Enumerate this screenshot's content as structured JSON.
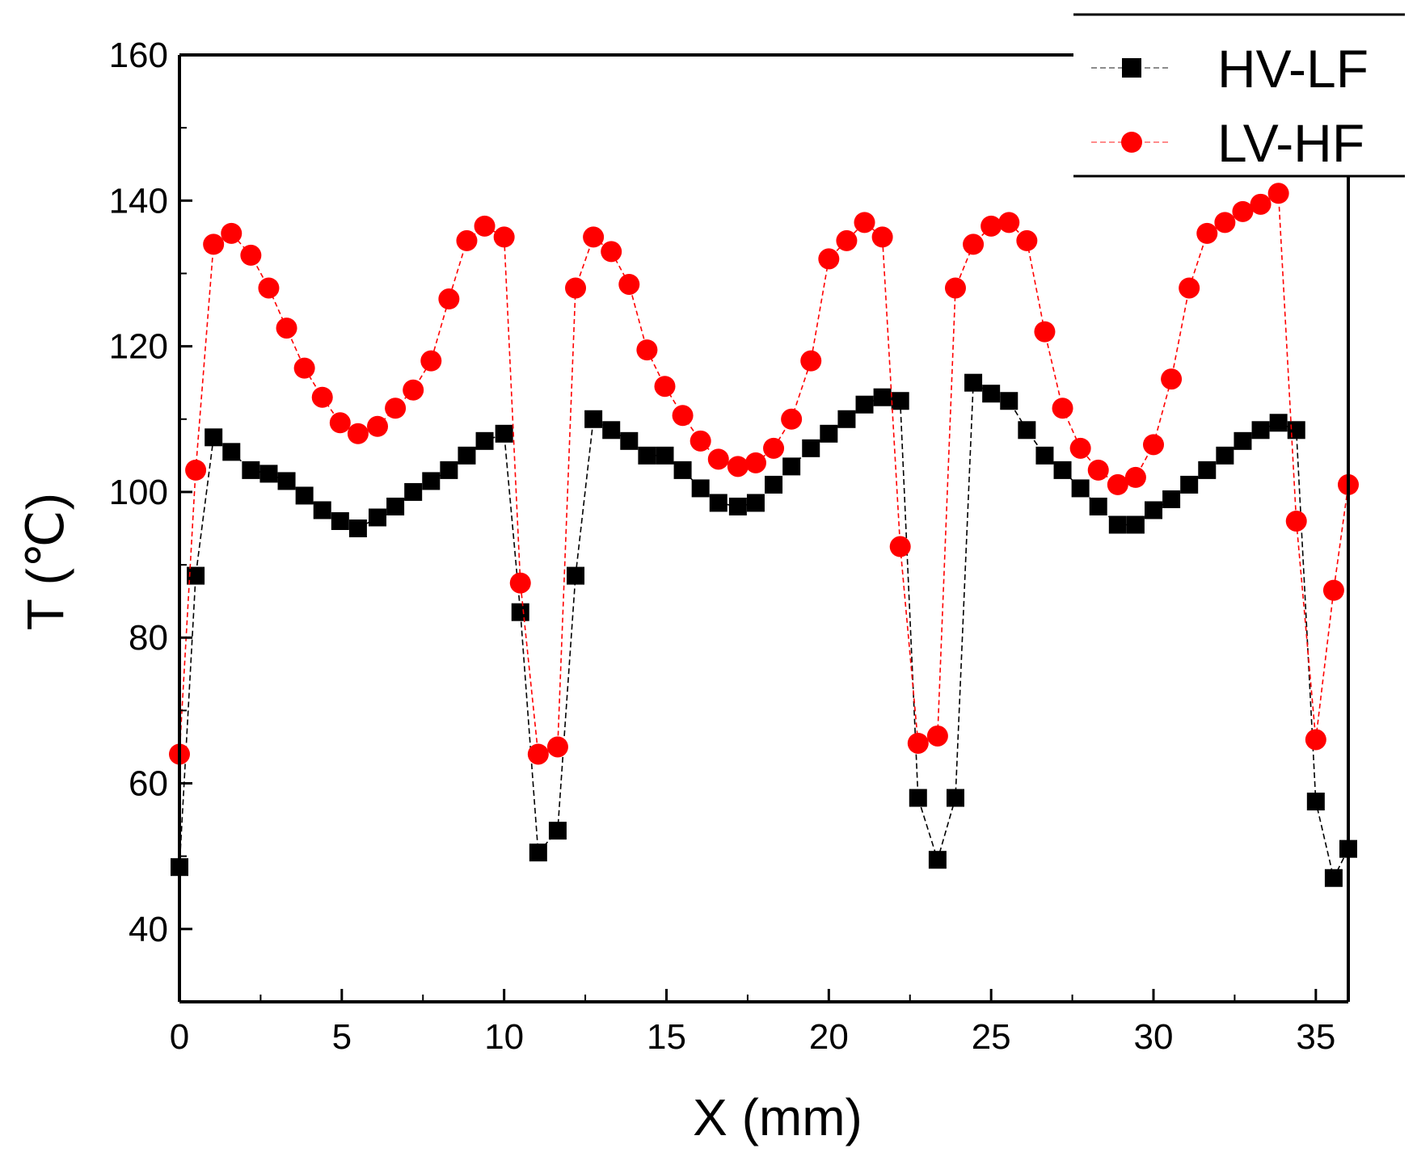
{
  "chart_data": {
    "type": "scatter",
    "title": "",
    "xlabel": "X (mm)",
    "ylabel": "T (℃)",
    "xlim": [
      0,
      36
    ],
    "ylim": [
      30,
      160
    ],
    "xticks": [
      0,
      5,
      10,
      15,
      20,
      25,
      30,
      35
    ],
    "yticks": [
      40,
      60,
      80,
      100,
      120,
      140,
      160
    ],
    "legend_position": "top-right",
    "series": [
      {
        "name": "HV-LF",
        "marker": "square",
        "color": "#000000",
        "line_color": "#000000",
        "x": [
          0,
          0.5,
          1.05,
          1.6,
          2.2,
          2.75,
          3.3,
          3.85,
          4.4,
          4.95,
          5.5,
          6.1,
          6.65,
          7.2,
          7.75,
          8.3,
          8.85,
          9.4,
          10.0,
          10.5,
          11.05,
          11.65,
          12.2,
          12.75,
          13.3,
          13.85,
          14.4,
          14.95,
          15.5,
          16.05,
          16.6,
          17.2,
          17.75,
          18.3,
          18.85,
          19.45,
          20.0,
          20.55,
          21.1,
          21.65,
          22.2,
          22.75,
          23.35,
          23.9,
          24.45,
          25.0,
          25.55,
          26.1,
          26.65,
          27.2,
          27.75,
          28.3,
          28.9,
          29.45,
          30.0,
          30.55,
          31.1,
          31.65,
          32.2,
          32.75,
          33.3,
          33.85,
          34.4,
          35.0,
          35.55,
          36.0
        ],
        "y": [
          48.5,
          88.5,
          107.5,
          105.5,
          103,
          102.5,
          101.5,
          99.5,
          97.5,
          96,
          95,
          96.5,
          98,
          100,
          101.5,
          103,
          105,
          107,
          108,
          83.5,
          50.5,
          53.5,
          88.5,
          110,
          108.5,
          107,
          105,
          105,
          103,
          100.5,
          98.5,
          98,
          98.5,
          101,
          103.5,
          106,
          108,
          110,
          112,
          113,
          112.5,
          58,
          49.5,
          58,
          115,
          113.5,
          112.5,
          108.5,
          105,
          103,
          100.5,
          98,
          95.5,
          95.5,
          97.5,
          99,
          101,
          103,
          105,
          107,
          108.5,
          109.5,
          108.5,
          57.5,
          47,
          51
        ]
      },
      {
        "name": "LV-HF",
        "marker": "circle",
        "color": "#ff0000",
        "line_color": "#ff0000",
        "x": [
          0,
          0.5,
          1.05,
          1.6,
          2.2,
          2.75,
          3.3,
          3.85,
          4.4,
          4.95,
          5.5,
          6.1,
          6.65,
          7.2,
          7.75,
          8.3,
          8.85,
          9.4,
          10.0,
          10.5,
          11.05,
          11.65,
          12.2,
          12.75,
          13.3,
          13.85,
          14.4,
          14.95,
          15.5,
          16.05,
          16.6,
          17.2,
          17.75,
          18.3,
          18.85,
          19.45,
          20.0,
          20.55,
          21.1,
          21.65,
          22.2,
          22.75,
          23.35,
          23.9,
          24.45,
          25.0,
          25.55,
          26.1,
          26.65,
          27.2,
          27.75,
          28.3,
          28.9,
          29.45,
          30.0,
          30.55,
          31.1,
          31.65,
          32.2,
          32.75,
          33.3,
          33.85,
          34.4,
          35.0,
          35.55,
          36.0
        ],
        "y": [
          64,
          103,
          134,
          135.5,
          132.5,
          128,
          122.5,
          117,
          113,
          109.5,
          108,
          109,
          111.5,
          114,
          118,
          126.5,
          134.5,
          136.5,
          135,
          87.5,
          64,
          65,
          128,
          135,
          133,
          128.5,
          119.5,
          114.5,
          110.5,
          107,
          104.5,
          103.5,
          104,
          106,
          110,
          118,
          132,
          134.5,
          137,
          135,
          92.5,
          65.5,
          66.5,
          128,
          134,
          136.5,
          137,
          134.5,
          122,
          111.5,
          106,
          103,
          101,
          102,
          106.5,
          115.5,
          128,
          135.5,
          137,
          138.5,
          139.5,
          141,
          96,
          66,
          86.5,
          101
        ]
      }
    ]
  }
}
